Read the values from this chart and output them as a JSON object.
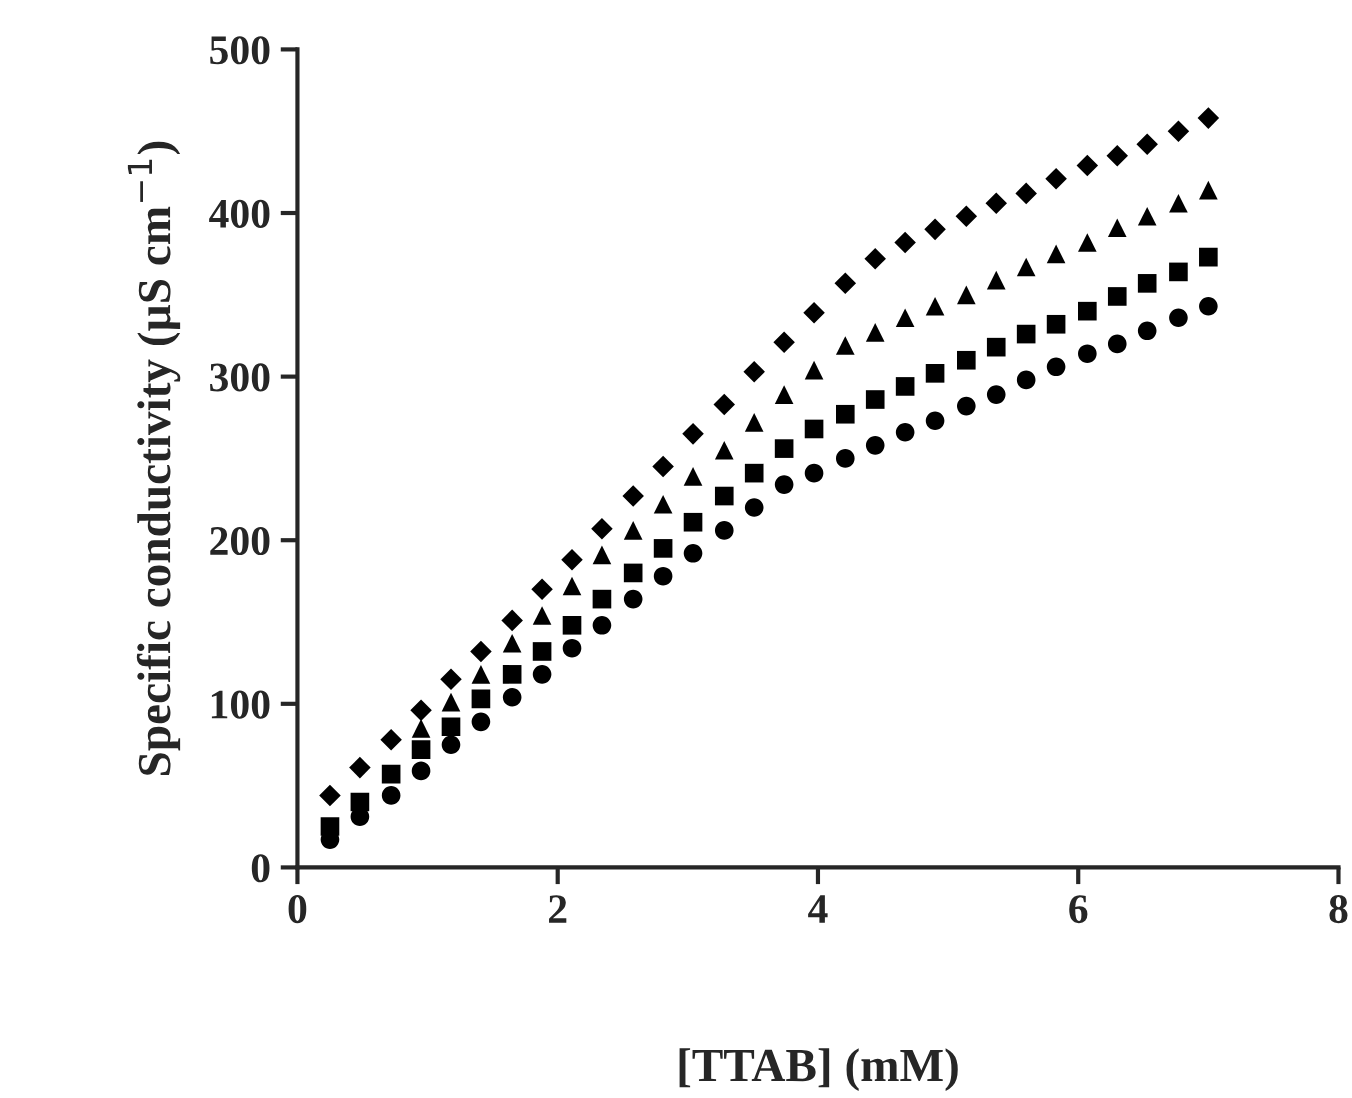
{
  "chart_data": {
    "type": "scatter",
    "xlabel": "[TTAB] (mM)",
    "ylabel": "Specific conductivity (µS cm$^{−1}$)",
    "x": [
      0.25,
      0.48,
      0.72,
      0.95,
      1.18,
      1.41,
      1.65,
      1.88,
      2.11,
      2.34,
      2.58,
      2.81,
      3.04,
      3.28,
      3.51,
      3.74,
      3.97,
      4.21,
      4.44,
      4.67,
      4.9,
      5.14,
      5.37,
      5.6,
      5.83,
      6.07,
      6.3,
      6.53,
      6.77,
      7.0
    ],
    "series": [
      {
        "color": "#000000",
        "marker": "diamond",
        "values": [
          44,
          61,
          78,
          96,
          115,
          132,
          151,
          170,
          188,
          207,
          227,
          245,
          265,
          283,
          303,
          321,
          339,
          357,
          372,
          382,
          390,
          398,
          406,
          412,
          421,
          429,
          435,
          442,
          450,
          458
        ]
      },
      {
        "color": "#000000",
        "marker": "triangle",
        "values": [
          null,
          null,
          null,
          85,
          101,
          118,
          137,
          154,
          172,
          191,
          206,
          222,
          239,
          255,
          272,
          289,
          304,
          319,
          327,
          336,
          343,
          350,
          359,
          367,
          375,
          382,
          391,
          398,
          406,
          414
        ]
      },
      {
        "color": "#000000",
        "marker": "square",
        "values": [
          25,
          40,
          57,
          72,
          86,
          103,
          118,
          132,
          148,
          164,
          180,
          195,
          211,
          227,
          241,
          256,
          268,
          277,
          286,
          294,
          302,
          310,
          318,
          326,
          332,
          340,
          349,
          357,
          364,
          373
        ]
      },
      {
        "color": "#000000",
        "marker": "circle",
        "values": [
          17,
          31,
          44,
          59,
          75,
          89,
          104,
          118,
          134,
          148,
          164,
          178,
          192,
          206,
          220,
          234,
          241,
          250,
          258,
          266,
          273,
          282,
          289,
          298,
          306,
          314,
          320,
          328,
          336,
          343
        ]
      }
    ],
    "xlim": [
      0,
      8
    ],
    "xticks": [
      0,
      2,
      4,
      6,
      8
    ],
    "ylim": [
      0,
      500
    ],
    "yticks": [
      0,
      100,
      200,
      300,
      400,
      500
    ],
    "grid": false,
    "legend": false
  }
}
